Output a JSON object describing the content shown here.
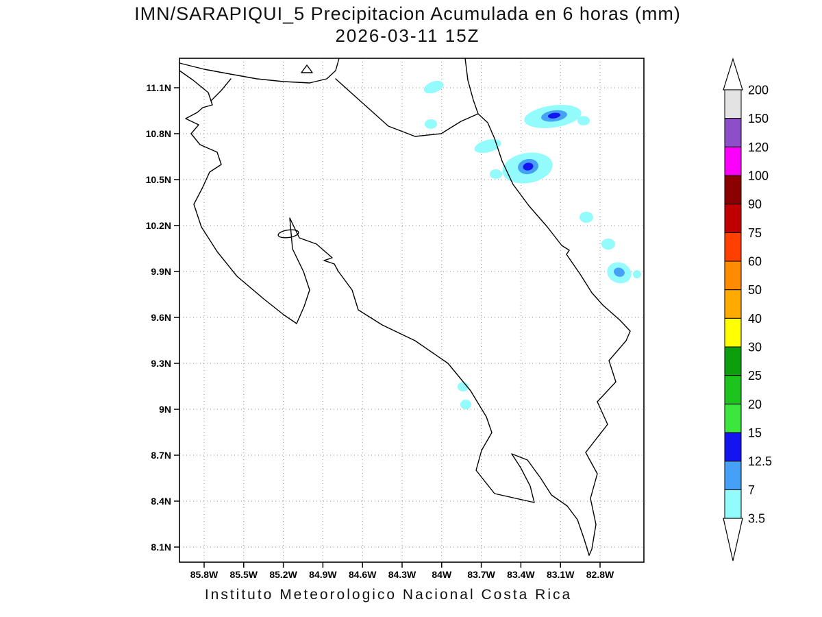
{
  "title": {
    "line1": "IMN/SARAPIQUI_5 Precipitacion Acumulada en 6 horas (mm)",
    "line2": "2026-03-11 15Z"
  },
  "footer": "Instituto Meteorologico Nacional Costa Rica",
  "axes": {
    "lat_ticks": [
      {
        "label": "11.1N",
        "value": 11.1
      },
      {
        "label": "10.8N",
        "value": 10.8
      },
      {
        "label": "10.5N",
        "value": 10.5
      },
      {
        "label": "10.2N",
        "value": 10.2
      },
      {
        "label": "9.9N",
        "value": 9.9
      },
      {
        "label": "9.6N",
        "value": 9.6
      },
      {
        "label": "9.3N",
        "value": 9.3
      },
      {
        "label": "9N",
        "value": 9.0
      },
      {
        "label": "8.7N",
        "value": 8.7
      },
      {
        "label": "8.4N",
        "value": 8.4
      },
      {
        "label": "8.1N",
        "value": 8.1
      }
    ],
    "lon_ticks": [
      {
        "label": "85.8W",
        "value": 85.8
      },
      {
        "label": "85.5W",
        "value": 85.5
      },
      {
        "label": "85.2W",
        "value": 85.2
      },
      {
        "label": "84.9W",
        "value": 84.9
      },
      {
        "label": "84.6W",
        "value": 84.6
      },
      {
        "label": "84.3W",
        "value": 84.3
      },
      {
        "label": "84W",
        "value": 84.0
      },
      {
        "label": "83.7W",
        "value": 83.7
      },
      {
        "label": "83.4W",
        "value": 83.4
      },
      {
        "label": "83.1W",
        "value": 83.1
      },
      {
        "label": "82.8W",
        "value": 82.8
      }
    ]
  },
  "colorbar": {
    "boundary_labels": [
      "200",
      "150",
      "120",
      "100",
      "90",
      "75",
      "60",
      "50",
      "40",
      "30",
      "25",
      "20",
      "15",
      "12.5",
      "7",
      "3.5"
    ],
    "cell_colors_top_to_bottom": [
      "#E3E3E3",
      "#8C4FC8",
      "#FB00FB",
      "#8B0000",
      "#C00000",
      "#FF4000",
      "#FF8C00",
      "#FFAA00",
      "#FFFF00",
      "#0C9E0C",
      "#1EC41E",
      "#3CE63C",
      "#1414F0",
      "#46A0F5",
      "#93FBFB"
    ],
    "arrow_fill": "#FFFFFF"
  },
  "chart_data": {
    "type": "map",
    "title": "IMN/SARAPIQUI_5 Precipitacion Acumulada en 6 horas (mm)",
    "valid_time": "2026-03-11 15Z",
    "units": "mm",
    "region": "Costa Rica",
    "lon_range_w": [
      85.8,
      82.8
    ],
    "lat_range_n": [
      8.1,
      11.1
    ],
    "legend_levels_mm": [
      3.5,
      7,
      12.5,
      15,
      20,
      25,
      30,
      40,
      50,
      60,
      75,
      90,
      100,
      120,
      150,
      200
    ],
    "level_colors": {
      "3.5": "#93FBFB",
      "7": "#46A0F5",
      "12.5": "#1414F0"
    },
    "precip_cells": [
      {
        "lon_w": 84.061,
        "lat_n": 11.104,
        "rx_deg": 0.078,
        "ry_deg": 0.036,
        "rot_deg": -20,
        "level_mm": 3.5
      },
      {
        "lon_w": 84.082,
        "lat_n": 10.863,
        "rx_deg": 0.047,
        "ry_deg": 0.031,
        "rot_deg": 0,
        "level_mm": 3.5
      },
      {
        "lon_w": 83.158,
        "lat_n": 10.912,
        "rx_deg": 0.218,
        "ry_deg": 0.072,
        "rot_deg": -8,
        "level_mm": 3.5
      },
      {
        "lon_w": 82.925,
        "lat_n": 10.885,
        "rx_deg": 0.047,
        "ry_deg": 0.031,
        "rot_deg": 0,
        "level_mm": 3.5
      },
      {
        "lon_w": 83.651,
        "lat_n": 10.719,
        "rx_deg": 0.104,
        "ry_deg": 0.04,
        "rot_deg": -15,
        "level_mm": 3.5
      },
      {
        "lon_w": 83.35,
        "lat_n": 10.576,
        "rx_deg": 0.192,
        "ry_deg": 0.098,
        "rot_deg": -10,
        "level_mm": 3.5
      },
      {
        "lon_w": 83.589,
        "lat_n": 10.536,
        "rx_deg": 0.047,
        "ry_deg": 0.031,
        "rot_deg": 0,
        "level_mm": 3.5
      },
      {
        "lon_w": 82.904,
        "lat_n": 10.254,
        "rx_deg": 0.052,
        "ry_deg": 0.036,
        "rot_deg": 0,
        "level_mm": 3.5
      },
      {
        "lon_w": 82.738,
        "lat_n": 10.079,
        "rx_deg": 0.052,
        "ry_deg": 0.036,
        "rot_deg": 0,
        "level_mm": 3.5
      },
      {
        "lon_w": 82.655,
        "lat_n": 9.891,
        "rx_deg": 0.093,
        "ry_deg": 0.067,
        "rot_deg": 20,
        "level_mm": 3.5
      },
      {
        "lon_w": 82.52,
        "lat_n": 9.882,
        "rx_deg": 0.031,
        "ry_deg": 0.027,
        "rot_deg": 0,
        "level_mm": 3.5
      },
      {
        "lon_w": 83.838,
        "lat_n": 9.147,
        "rx_deg": 0.042,
        "ry_deg": 0.031,
        "rot_deg": 0,
        "level_mm": 3.5
      },
      {
        "lon_w": 83.817,
        "lat_n": 9.031,
        "rx_deg": 0.042,
        "ry_deg": 0.031,
        "rot_deg": 0,
        "level_mm": 3.5
      },
      {
        "lon_w": 83.148,
        "lat_n": 10.916,
        "rx_deg": 0.099,
        "ry_deg": 0.036,
        "rot_deg": -8,
        "level_mm": 7
      },
      {
        "lon_w": 83.345,
        "lat_n": 10.585,
        "rx_deg": 0.078,
        "ry_deg": 0.049,
        "rot_deg": -10,
        "level_mm": 7
      },
      {
        "lon_w": 82.655,
        "lat_n": 9.895,
        "rx_deg": 0.042,
        "ry_deg": 0.029,
        "rot_deg": 20,
        "level_mm": 7
      },
      {
        "lon_w": 83.148,
        "lat_n": 10.918,
        "rx_deg": 0.047,
        "ry_deg": 0.018,
        "rot_deg": -8,
        "level_mm": 12.5
      },
      {
        "lon_w": 83.345,
        "lat_n": 10.585,
        "rx_deg": 0.039,
        "ry_deg": 0.025,
        "rot_deg": -10,
        "level_mm": 12.5
      }
    ]
  }
}
